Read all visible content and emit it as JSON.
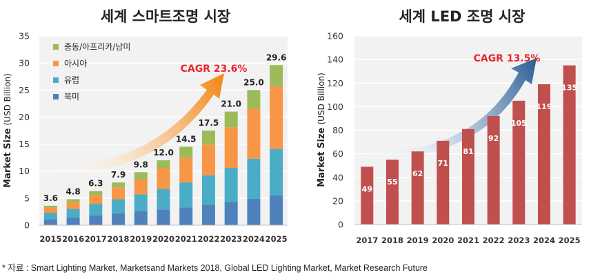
{
  "chart_data": [
    {
      "type": "bar",
      "stacked": true,
      "title": "세계 스마트조명 시장",
      "xlabel": "",
      "ylabel": "Market Size (USD Billion)",
      "ylabel_bold": "Market Size",
      "ylabel_unit": "(USD Billion)",
      "categories": [
        "2015",
        "2016",
        "2017",
        "2018",
        "2019",
        "2020",
        "2021",
        "2022",
        "2023",
        "2024",
        "2025"
      ],
      "ylim": [
        0,
        35
      ],
      "yticks": [
        0,
        5,
        10,
        15,
        20,
        25,
        30,
        35
      ],
      "series": [
        {
          "name": "북미",
          "color": "#4f81bd",
          "values": [
            1.1,
            1.4,
            1.8,
            2.2,
            2.6,
            2.9,
            3.3,
            3.8,
            4.3,
            4.9,
            5.5
          ]
        },
        {
          "name": "유럽",
          "color": "#4bacc6",
          "values": [
            1.2,
            1.6,
            2.1,
            2.6,
            3.1,
            3.8,
            4.6,
            5.4,
            6.3,
            7.4,
            8.6
          ]
        },
        {
          "name": "아시아",
          "color": "#f79646",
          "values": [
            0.9,
            1.3,
            1.7,
            2.2,
            2.8,
            3.9,
            4.6,
            5.7,
            7.5,
            9.3,
            11.6
          ]
        },
        {
          "name": "중동/아프리카/남미",
          "color": "#9bbb59",
          "values": [
            0.4,
            0.5,
            0.7,
            0.9,
            1.3,
            1.4,
            2.0,
            2.6,
            2.9,
            3.4,
            3.9
          ]
        }
      ],
      "totals": [
        "3.6",
        "4.8",
        "6.3",
        "7.9",
        "9.8",
        "12.0",
        "14.5",
        "17.5",
        "21.0",
        "25.0",
        "29.6"
      ],
      "legend_order": [
        "중동/아프리카/남미",
        "아시아",
        "유럽",
        "북미"
      ],
      "annotation": "CAGR 23.6%"
    },
    {
      "type": "bar",
      "title": "세계 LED 조명 시장",
      "xlabel": "",
      "ylabel": "Market Size (USD Billion)",
      "ylabel_bold": "Market Size",
      "ylabel_unit": "(USD Billion)",
      "categories": [
        "2017",
        "2018",
        "2019",
        "2020",
        "2021",
        "2022",
        "2023",
        "2024",
        "2025"
      ],
      "values": [
        49,
        55,
        62,
        71,
        81,
        92,
        105,
        119,
        135
      ],
      "labels": [
        "49",
        "55",
        "62",
        "71",
        "81",
        "92",
        "105",
        "119",
        "135"
      ],
      "color": "#c0504d",
      "ylim": [
        0,
        160
      ],
      "yticks": [
        0,
        20,
        40,
        60,
        80,
        100,
        120,
        140,
        160
      ],
      "annotation": "CAGR 13.5%"
    }
  ],
  "footnote": "* 자료 : Smart Lighting Market, Marketsand Markets 2018, Global LED Lighting Market, Market Research Future"
}
